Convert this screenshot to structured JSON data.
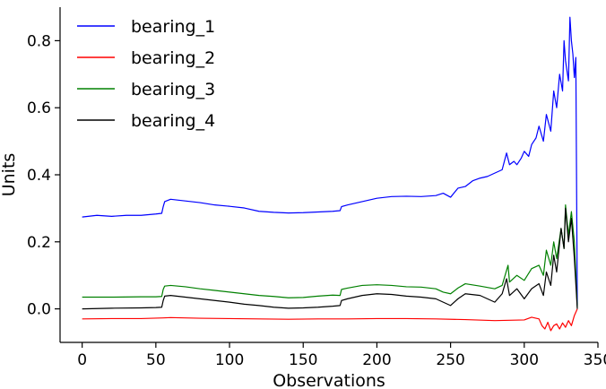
{
  "chart_data": {
    "type": "line",
    "title": "",
    "xlabel": "Observations",
    "ylabel": "Units",
    "xlim": [
      -15,
      350
    ],
    "ylim": [
      -0.1,
      0.9
    ],
    "xticks": [
      0,
      50,
      100,
      150,
      200,
      250,
      300,
      350
    ],
    "yticks": [
      0.0,
      0.2,
      0.4,
      0.6,
      0.8
    ],
    "xtick_labels": [
      "0",
      "50",
      "100",
      "150",
      "200",
      "250",
      "300",
      "350"
    ],
    "ytick_labels": [
      "0.0",
      "0.2",
      "0.4",
      "0.6",
      "0.8"
    ],
    "grid": false,
    "legend_position": "top-left",
    "series": [
      {
        "name": "bearing_1",
        "color": "#0000ff",
        "x": [
          0,
          10,
          20,
          30,
          40,
          50,
          54,
          55,
          56,
          60,
          70,
          80,
          90,
          100,
          110,
          120,
          130,
          140,
          150,
          160,
          170,
          175,
          176,
          180,
          190,
          200,
          210,
          220,
          230,
          240,
          245,
          250,
          255,
          260,
          265,
          270,
          275,
          280,
          285,
          288,
          290,
          293,
          295,
          298,
          300,
          303,
          305,
          308,
          310,
          313,
          315,
          318,
          320,
          322,
          324,
          326,
          327,
          328,
          330,
          331,
          332,
          333,
          334,
          335,
          336
        ],
        "y": [
          0.274,
          0.279,
          0.276,
          0.279,
          0.279,
          0.283,
          0.285,
          0.305,
          0.32,
          0.327,
          0.322,
          0.317,
          0.31,
          0.306,
          0.301,
          0.291,
          0.288,
          0.286,
          0.287,
          0.289,
          0.291,
          0.293,
          0.305,
          0.31,
          0.32,
          0.33,
          0.335,
          0.336,
          0.335,
          0.338,
          0.345,
          0.333,
          0.36,
          0.365,
          0.382,
          0.39,
          0.395,
          0.405,
          0.415,
          0.465,
          0.43,
          0.44,
          0.43,
          0.45,
          0.47,
          0.455,
          0.49,
          0.51,
          0.545,
          0.5,
          0.58,
          0.53,
          0.65,
          0.6,
          0.7,
          0.65,
          0.8,
          0.74,
          0.68,
          0.87,
          0.8,
          0.76,
          0.69,
          0.75,
          0.01
        ]
      },
      {
        "name": "bearing_2",
        "color": "#ff0000",
        "x": [
          0,
          20,
          40,
          55,
          60,
          80,
          100,
          120,
          140,
          160,
          180,
          200,
          220,
          240,
          260,
          280,
          300,
          305,
          310,
          312,
          314,
          316,
          318,
          320,
          322,
          324,
          326,
          328,
          330,
          332,
          334,
          336
        ],
        "y": [
          -0.03,
          -0.029,
          -0.029,
          -0.027,
          -0.026,
          -0.028,
          -0.029,
          -0.03,
          -0.031,
          -0.03,
          -0.03,
          -0.029,
          -0.029,
          -0.03,
          -0.032,
          -0.035,
          -0.033,
          -0.025,
          -0.03,
          -0.05,
          -0.06,
          -0.04,
          -0.065,
          -0.05,
          -0.045,
          -0.06,
          -0.042,
          -0.055,
          -0.035,
          -0.05,
          -0.02,
          0.0
        ]
      },
      {
        "name": "bearing_3",
        "color": "#008000",
        "x": [
          0,
          20,
          40,
          50,
          54,
          55,
          56,
          60,
          70,
          80,
          90,
          100,
          110,
          120,
          130,
          140,
          150,
          160,
          170,
          175,
          176,
          180,
          190,
          200,
          210,
          220,
          230,
          240,
          245,
          250,
          255,
          260,
          270,
          280,
          285,
          289,
          290,
          295,
          300,
          305,
          310,
          313,
          315,
          318,
          320,
          322,
          325,
          327,
          328,
          330,
          332,
          334,
          336
        ],
        "y": [
          0.035,
          0.035,
          0.036,
          0.036,
          0.037,
          0.058,
          0.068,
          0.07,
          0.066,
          0.06,
          0.055,
          0.05,
          0.045,
          0.04,
          0.037,
          0.033,
          0.034,
          0.038,
          0.041,
          0.04,
          0.058,
          0.062,
          0.07,
          0.072,
          0.07,
          0.066,
          0.065,
          0.06,
          0.05,
          0.045,
          0.062,
          0.075,
          0.068,
          0.06,
          0.07,
          0.13,
          0.08,
          0.1,
          0.085,
          0.12,
          0.13,
          0.1,
          0.175,
          0.13,
          0.2,
          0.15,
          0.24,
          0.18,
          0.31,
          0.22,
          0.29,
          0.2,
          0.005
        ]
      },
      {
        "name": "bearing_4",
        "color": "#000000",
        "x": [
          0,
          20,
          40,
          50,
          54,
          55,
          56,
          60,
          70,
          80,
          90,
          100,
          110,
          120,
          130,
          140,
          150,
          160,
          170,
          175,
          176,
          180,
          190,
          200,
          210,
          220,
          230,
          240,
          245,
          250,
          255,
          260,
          270,
          280,
          285,
          288,
          290,
          295,
          300,
          305,
          310,
          313,
          315,
          318,
          320,
          322,
          325,
          327,
          328,
          330,
          332,
          334,
          336
        ],
        "y": [
          0.0,
          0.002,
          0.003,
          0.004,
          0.005,
          0.025,
          0.038,
          0.04,
          0.035,
          0.03,
          0.025,
          0.02,
          0.014,
          0.01,
          0.005,
          0.002,
          0.003,
          0.005,
          0.008,
          0.01,
          0.025,
          0.03,
          0.04,
          0.045,
          0.043,
          0.038,
          0.035,
          0.03,
          0.02,
          0.01,
          0.03,
          0.045,
          0.04,
          0.02,
          0.045,
          0.09,
          0.04,
          0.06,
          0.03,
          0.06,
          0.075,
          0.04,
          0.11,
          0.07,
          0.16,
          0.11,
          0.24,
          0.18,
          0.3,
          0.2,
          0.27,
          0.15,
          0.0
        ]
      }
    ]
  }
}
